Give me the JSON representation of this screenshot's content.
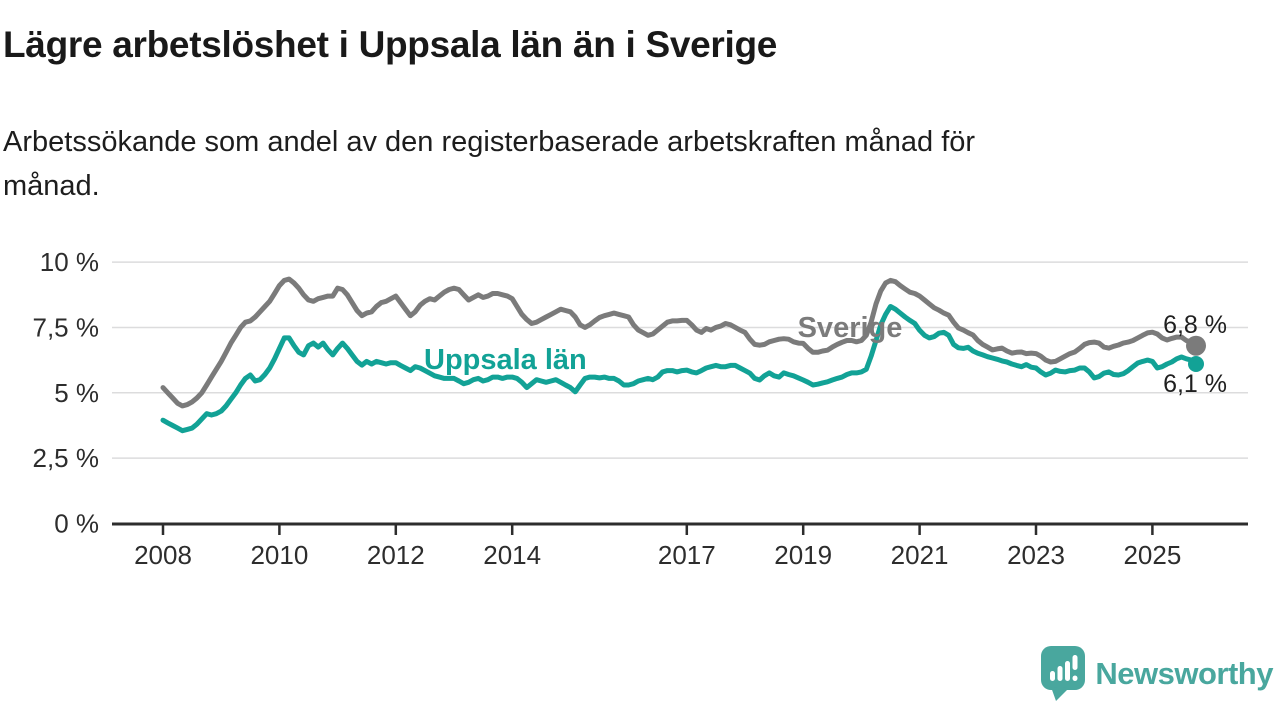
{
  "header": {
    "title": "Lägre arbetslöshet i Uppsala län än i Sverige",
    "subtitle_lines": [
      "Arbetssökande som andel av den registerbaserade arbetskraften månad för",
      "månad."
    ]
  },
  "chart_data": {
    "type": "line",
    "x_start_year": 2008,
    "x_step_months": 1,
    "xlabel": "",
    "ylabel": "",
    "ylim": [
      0,
      10
    ],
    "grid": true,
    "gridline_color": "#dcdcdd",
    "axis_color": "#2d2d2d",
    "yticks": [
      {
        "value": 0,
        "label": "0 %"
      },
      {
        "value": 2.5,
        "label": "2,5 %"
      },
      {
        "value": 5,
        "label": "5 %"
      },
      {
        "value": 7.5,
        "label": "7,5 %"
      },
      {
        "value": 10,
        "label": "10 %"
      }
    ],
    "xticks": [
      2008,
      2010,
      2012,
      2014,
      2017,
      2019,
      2021,
      2023,
      2025
    ],
    "series": [
      {
        "name": "Sverige",
        "color": "#7b7b7b",
        "end_label": "6,8 %",
        "end_value": 6.8,
        "values": [
          5.2,
          5.0,
          4.8,
          4.6,
          4.5,
          4.55,
          4.65,
          4.8,
          5.0,
          5.3,
          5.6,
          5.9,
          6.2,
          6.55,
          6.9,
          7.2,
          7.5,
          7.7,
          7.75,
          7.9,
          8.1,
          8.3,
          8.5,
          8.8,
          9.1,
          9.3,
          9.35,
          9.2,
          9.0,
          8.75,
          8.55,
          8.5,
          8.6,
          8.65,
          8.7,
          8.7,
          9.0,
          8.95,
          8.75,
          8.45,
          8.15,
          7.95,
          8.05,
          8.1,
          8.3,
          8.45,
          8.5,
          8.6,
          8.7,
          8.45,
          8.2,
          7.95,
          8.1,
          8.35,
          8.5,
          8.6,
          8.55,
          8.7,
          8.85,
          8.95,
          9.0,
          8.95,
          8.75,
          8.55,
          8.65,
          8.75,
          8.65,
          8.7,
          8.8,
          8.8,
          8.75,
          8.7,
          8.6,
          8.3,
          8.0,
          7.8,
          7.65,
          7.7,
          7.8,
          7.9,
          8.0,
          8.1,
          8.2,
          8.15,
          8.1,
          7.9,
          7.6,
          7.5,
          7.6,
          7.75,
          7.88,
          7.95,
          8.0,
          8.05,
          8.0,
          7.95,
          7.9,
          7.6,
          7.4,
          7.3,
          7.2,
          7.25,
          7.4,
          7.55,
          7.7,
          7.75,
          7.75,
          7.77,
          7.77,
          7.6,
          7.4,
          7.31,
          7.46,
          7.4,
          7.5,
          7.55,
          7.65,
          7.6,
          7.5,
          7.4,
          7.31,
          7.05,
          6.85,
          6.82,
          6.85,
          6.95,
          7.0,
          7.05,
          7.07,
          7.05,
          6.95,
          6.9,
          6.89,
          6.7,
          6.55,
          6.55,
          6.6,
          6.63,
          6.75,
          6.85,
          6.93,
          7.0,
          7.0,
          6.95,
          7.0,
          7.2,
          7.7,
          8.4,
          8.9,
          9.2,
          9.3,
          9.25,
          9.1,
          8.97,
          8.85,
          8.8,
          8.7,
          8.55,
          8.4,
          8.25,
          8.16,
          8.05,
          7.97,
          7.7,
          7.48,
          7.4,
          7.3,
          7.21,
          7.0,
          6.85,
          6.75,
          6.64,
          6.68,
          6.71,
          6.6,
          6.52,
          6.55,
          6.56,
          6.5,
          6.52,
          6.5,
          6.4,
          6.25,
          6.18,
          6.2,
          6.3,
          6.4,
          6.5,
          6.56,
          6.7,
          6.85,
          6.92,
          6.94,
          6.9,
          6.75,
          6.71,
          6.78,
          6.83,
          6.9,
          6.94,
          7.0,
          7.1,
          7.2,
          7.29,
          7.32,
          7.25,
          7.1,
          7.02,
          7.08,
          7.13,
          7.13,
          7.0,
          6.94,
          6.8
        ]
      },
      {
        "name": "Uppsala län",
        "color": "#12a296",
        "end_label": "6,1 %",
        "end_value": 6.1,
        "values": [
          3.95,
          3.85,
          3.75,
          3.65,
          3.55,
          3.6,
          3.65,
          3.8,
          4.0,
          4.2,
          4.15,
          4.2,
          4.3,
          4.5,
          4.75,
          5.0,
          5.3,
          5.55,
          5.68,
          5.45,
          5.5,
          5.7,
          5.95,
          6.3,
          6.7,
          7.1,
          7.1,
          6.8,
          6.55,
          6.45,
          6.8,
          6.9,
          6.75,
          6.9,
          6.65,
          6.45,
          6.7,
          6.9,
          6.7,
          6.45,
          6.2,
          6.06,
          6.2,
          6.1,
          6.2,
          6.15,
          6.1,
          6.15,
          6.15,
          6.05,
          5.95,
          5.85,
          6.0,
          5.95,
          5.85,
          5.75,
          5.65,
          5.6,
          5.55,
          5.55,
          5.55,
          5.45,
          5.35,
          5.4,
          5.5,
          5.55,
          5.45,
          5.5,
          5.6,
          5.6,
          5.55,
          5.6,
          5.6,
          5.55,
          5.4,
          5.2,
          5.35,
          5.5,
          5.45,
          5.4,
          5.45,
          5.5,
          5.4,
          5.3,
          5.2,
          5.04,
          5.3,
          5.55,
          5.6,
          5.6,
          5.57,
          5.6,
          5.55,
          5.55,
          5.45,
          5.3,
          5.3,
          5.35,
          5.45,
          5.5,
          5.55,
          5.5,
          5.6,
          5.8,
          5.85,
          5.85,
          5.8,
          5.85,
          5.87,
          5.8,
          5.76,
          5.85,
          5.95,
          6.0,
          6.05,
          6.0,
          6.0,
          6.05,
          6.05,
          5.95,
          5.85,
          5.75,
          5.55,
          5.49,
          5.65,
          5.76,
          5.65,
          5.6,
          5.76,
          5.7,
          5.65,
          5.57,
          5.49,
          5.4,
          5.3,
          5.33,
          5.38,
          5.42,
          5.49,
          5.55,
          5.6,
          5.7,
          5.76,
          5.76,
          5.8,
          5.9,
          6.4,
          7.0,
          7.6,
          8.0,
          8.3,
          8.2,
          8.05,
          7.9,
          7.77,
          7.65,
          7.39,
          7.2,
          7.1,
          7.15,
          7.28,
          7.31,
          7.2,
          6.85,
          6.72,
          6.7,
          6.74,
          6.6,
          6.51,
          6.45,
          6.38,
          6.33,
          6.28,
          6.22,
          6.18,
          6.1,
          6.05,
          6.0,
          6.08,
          5.98,
          5.95,
          5.8,
          5.68,
          5.75,
          5.87,
          5.82,
          5.8,
          5.85,
          5.87,
          5.95,
          5.95,
          5.8,
          5.57,
          5.62,
          5.75,
          5.8,
          5.7,
          5.68,
          5.73,
          5.85,
          6.0,
          6.14,
          6.2,
          6.25,
          6.2,
          5.95,
          6.0,
          6.1,
          6.18,
          6.3,
          6.37,
          6.3,
          6.25,
          6.1
        ]
      }
    ]
  },
  "branding": {
    "logo_text": "Newsworthy",
    "logo_color": "#49a79e",
    "logo_icon": "speech-bubble-bar-chart-icon"
  }
}
